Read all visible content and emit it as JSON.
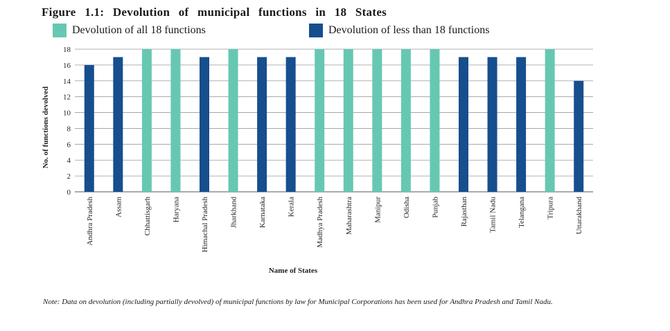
{
  "title": "Figure 1.1: Devolution of municipal functions in 18 States",
  "legend": [
    {
      "label": "Devolution of all 18 functions",
      "color": "#66c8b2"
    },
    {
      "label": "Devolution of less than 18 functions",
      "color": "#174e8e"
    }
  ],
  "note": "Note: Data on devolution (including partially devolved) of municipal functions by law for Municipal Corporations has been used for Andhra Pradesh and Tamil Nadu.",
  "chart_data": {
    "type": "bar",
    "title": "Figure 1.1: Devolution of municipal functions in 18 States",
    "xlabel": "Name of States",
    "ylabel": "No. of functions devolved",
    "ylim": [
      0,
      18
    ],
    "yticks": [
      0,
      2,
      4,
      6,
      8,
      10,
      12,
      14,
      16,
      18
    ],
    "grid": true,
    "legend_position": "top",
    "categories": [
      "Andhra Pradesh",
      "Assam",
      "Chhattisgarh",
      "Haryana",
      "Himachal Pradesh",
      "Jharkhand",
      "Karnataka",
      "Kerala",
      "Madhya Pradesh",
      "Maharashtra",
      "Manipur",
      "Odisha",
      "Punjab",
      "Rajasthan",
      "Tamil Nadu",
      "Telangana",
      "Tripura",
      "Uttarakhand"
    ],
    "values": [
      16,
      17,
      18,
      18,
      17,
      18,
      17,
      17,
      18,
      18,
      18,
      18,
      18,
      17,
      17,
      17,
      18,
      14
    ],
    "colors": {
      "all": "#66c8b2",
      "less": "#174e8e"
    }
  }
}
